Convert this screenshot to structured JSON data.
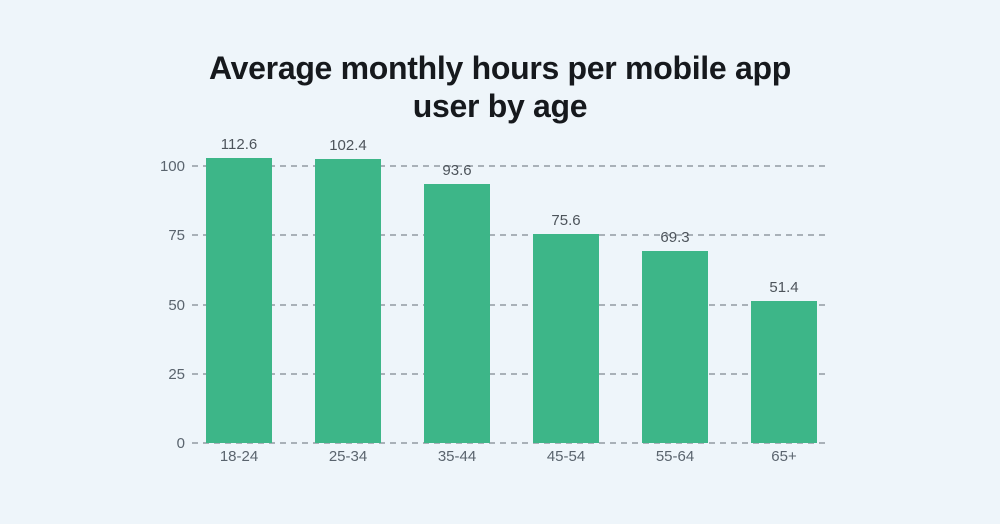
{
  "chart_data": {
    "type": "bar",
    "title": "Average monthly hours per mobile app\nuser by age",
    "categories": [
      "18-24",
      "25-34",
      "35-44",
      "45-54",
      "55-64",
      "65+"
    ],
    "values": [
      112.6,
      102.4,
      93.6,
      75.6,
      69.3,
      51.4
    ],
    "value_labels": [
      "112.6",
      "102.4",
      "93.6",
      "75.6",
      "69.3",
      "51.4"
    ],
    "xlabel": "",
    "ylabel": "",
    "y_ticks": [
      0,
      25,
      50,
      75,
      100
    ],
    "ylim": [
      0,
      103
    ],
    "grid": "horizontal-dashed",
    "legend_position": "none",
    "bar_color": "#3db688",
    "gridline_color": "#a9b1b8",
    "background_color": "#eef5fa",
    "title_color": "#16191d",
    "value_label_color": "#4d545b",
    "axis_label_color": "#5a646e"
  }
}
